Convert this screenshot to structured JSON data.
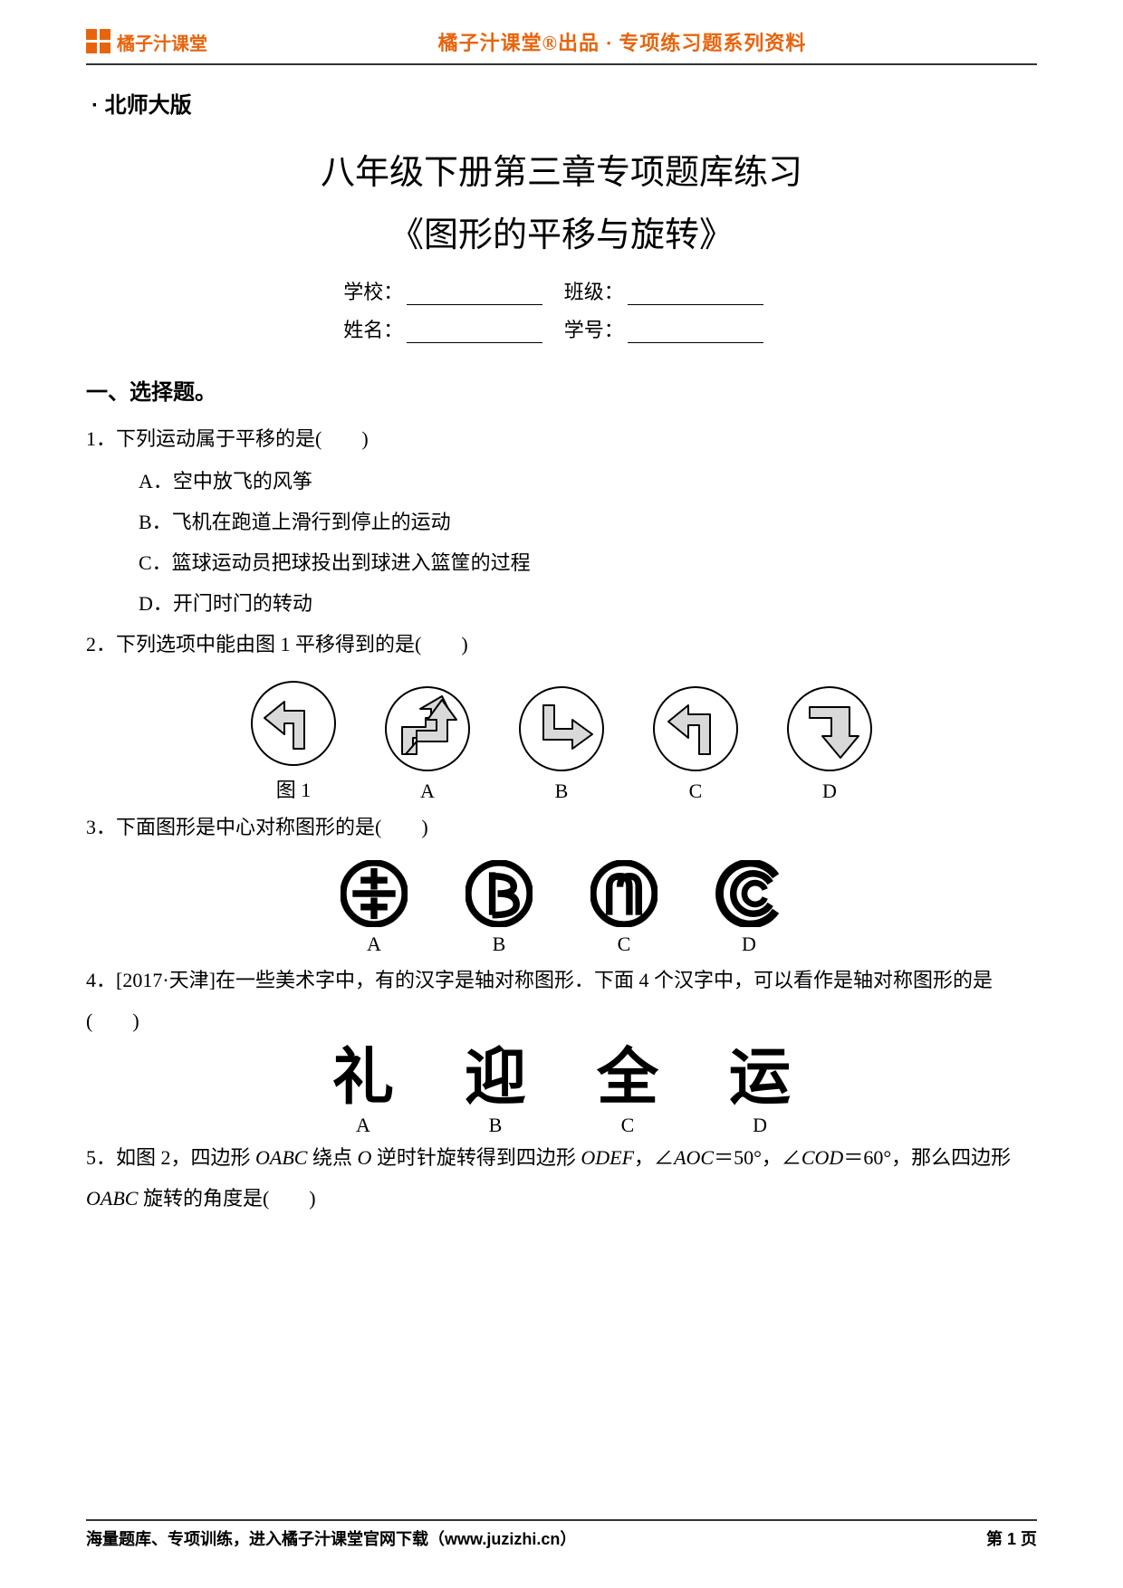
{
  "header": {
    "brand": "橘子汁课堂",
    "center_text": "橘子汁课堂®出品 · 专项练习题系列资料",
    "brand_color": "#e8640c"
  },
  "edition_line": "· 北师大版",
  "title_line1": "八年级下册第三章专项题库练习",
  "title_line2": "《图形的平移与旋转》",
  "info_fields": {
    "school_label": "学校：",
    "class_label": "班级：",
    "name_label": "姓名：",
    "id_label": "学号："
  },
  "section1_heading": "一、选择题。",
  "q1": {
    "stem": "1．下列运动属于平移的是(　　)",
    "options": {
      "a": "A．空中放飞的风筝",
      "b": "B．飞机在跑道上滑行到停止的运动",
      "c": "C．篮球运动员把球投出到球进入篮筐的过程",
      "d": "D．开门时门的转动"
    }
  },
  "q2": {
    "stem": "2．下列选项中能由图 1 平移得到的是(　　)",
    "labels": {
      "fig1": "图 1",
      "a": "A",
      "b": "B",
      "c": "C",
      "d": "D"
    },
    "style": {
      "circle_r": 46,
      "stroke": "#000000",
      "fill": "#d9d9d9",
      "line_w": 2
    }
  },
  "q3": {
    "stem": "3．下面图形是中心对称图形的是(　　)",
    "labels": {
      "a": "A",
      "b": "B",
      "c": "C",
      "d": "D"
    },
    "style": {
      "size": 74,
      "color": "#000000"
    }
  },
  "q4": {
    "stem_prefix": "4．[2017·天津]在一些美术字中，有的汉字是轴对称图形．下面 4 个汉字中，可以看作是轴对称图形的是(　　)",
    "chars": {
      "a": "礼",
      "b": "迎",
      "c": "全",
      "d": "运"
    },
    "labels": {
      "a": "A",
      "b": "B",
      "c": "C",
      "d": "D"
    }
  },
  "q5": {
    "html_stem": "5．如图 2，四边形 <span class=\"ital\">OABC</span> 绕点 <span class=\"ital\">O</span> 逆时针旋转得到四边形 <span class=\"ital\">ODEF</span>，∠<span class=\"ital\">AOC</span>＝50°，∠<span class=\"ital\">COD</span>＝60°，那么四边形 <span class=\"ital\">OABC</span> 旋转的角度是(　　)"
  },
  "footer": {
    "left": "海量题库、专项训练，进入橘子汁课堂官网下载（www.juzizhi.cn）",
    "right": "第 1 页"
  }
}
